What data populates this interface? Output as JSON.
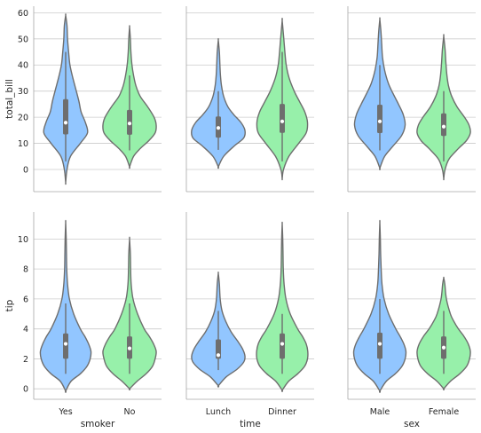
{
  "chart_data": {
    "type": "violin",
    "grid": "horizontal",
    "colors": {
      "first_category": "#92c6ff",
      "second_category": "#97f0aa",
      "outline": "#6e6e6e",
      "median": "#ffffff"
    },
    "row_variables": [
      {
        "ylabel": "total_bill",
        "yticks": [
          0,
          10,
          20,
          30,
          40,
          50,
          60
        ],
        "ylim": [
          -8.5,
          62.5
        ]
      },
      {
        "ylabel": "tip",
        "yticks": [
          0,
          2,
          4,
          6,
          8,
          10
        ],
        "ylim": [
          -0.7,
          11.8
        ]
      }
    ],
    "column_variables": [
      {
        "xlabel": "smoker",
        "categories": [
          "Yes",
          "No"
        ]
      },
      {
        "xlabel": "time",
        "categories": [
          "Lunch",
          "Dinner"
        ]
      },
      {
        "xlabel": "sex",
        "categories": [
          "Male",
          "Female"
        ]
      }
    ],
    "panels": [
      {
        "row": 0,
        "col": 0,
        "violins": [
          {
            "category": "Yes",
            "min": -5.0,
            "max": 59.0,
            "q1": 13.4,
            "median": 17.9,
            "q3": 26.9,
            "whisker_low": 3.1,
            "whisker_high": 45.0,
            "profile": [
              [
                -5,
                0
              ],
              [
                0,
                0.05
              ],
              [
                5,
                0.18
              ],
              [
                10,
                0.55
              ],
              [
                14,
                0.82
              ],
              [
                18,
                0.74
              ],
              [
                22,
                0.58
              ],
              [
                26,
                0.5
              ],
              [
                30,
                0.4
              ],
              [
                35,
                0.27
              ],
              [
                40,
                0.16
              ],
              [
                45,
                0.11
              ],
              [
                50,
                0.07
              ],
              [
                55,
                0.05
              ],
              [
                59,
                0
              ]
            ]
          },
          {
            "category": "No",
            "min": 1.0,
            "max": 54.5,
            "q1": 13.3,
            "median": 17.6,
            "q3": 22.8,
            "whisker_low": 7.3,
            "whisker_high": 36.0,
            "profile": [
              [
                1,
                0
              ],
              [
                5,
                0.15
              ],
              [
                8,
                0.4
              ],
              [
                11,
                0.72
              ],
              [
                14,
                0.96
              ],
              [
                17,
                1.0
              ],
              [
                20,
                0.92
              ],
              [
                24,
                0.68
              ],
              [
                28,
                0.4
              ],
              [
                32,
                0.24
              ],
              [
                36,
                0.15
              ],
              [
                40,
                0.09
              ],
              [
                45,
                0.05
              ],
              [
                50,
                0.03
              ],
              [
                54.5,
                0
              ]
            ]
          }
        ]
      },
      {
        "row": 0,
        "col": 1,
        "violins": [
          {
            "category": "Lunch",
            "min": 1.0,
            "max": 49.5,
            "q1": 12.2,
            "median": 15.9,
            "q3": 20.3,
            "whisker_low": 7.5,
            "whisker_high": 30.0,
            "profile": [
              [
                1,
                0
              ],
              [
                5,
                0.2
              ],
              [
                9,
                0.6
              ],
              [
                12,
                0.95
              ],
              [
                15,
                1.0
              ],
              [
                18,
                0.85
              ],
              [
                21,
                0.58
              ],
              [
                24,
                0.36
              ],
              [
                28,
                0.2
              ],
              [
                32,
                0.12
              ],
              [
                36,
                0.08
              ],
              [
                40,
                0.06
              ],
              [
                45,
                0.04
              ],
              [
                49.5,
                0
              ]
            ]
          },
          {
            "category": "Dinner",
            "min": -3.5,
            "max": 57.0,
            "q1": 14.0,
            "median": 18.4,
            "q3": 25.1,
            "whisker_low": 3.1,
            "whisker_high": 45.0,
            "profile": [
              [
                -3.5,
                0
              ],
              [
                0,
                0.05
              ],
              [
                5,
                0.25
              ],
              [
                10,
                0.62
              ],
              [
                14,
                0.9
              ],
              [
                18,
                0.95
              ],
              [
                22,
                0.85
              ],
              [
                26,
                0.65
              ],
              [
                30,
                0.45
              ],
              [
                35,
                0.26
              ],
              [
                40,
                0.15
              ],
              [
                45,
                0.1
              ],
              [
                50,
                0.06
              ],
              [
                57,
                0
              ]
            ]
          }
        ]
      },
      {
        "row": 0,
        "col": 2,
        "violins": [
          {
            "category": "Male",
            "min": 0.5,
            "max": 57.5,
            "q1": 13.9,
            "median": 18.4,
            "q3": 24.8,
            "whisker_low": 7.3,
            "whisker_high": 40.0,
            "profile": [
              [
                0.5,
                0
              ],
              [
                5,
                0.18
              ],
              [
                9,
                0.5
              ],
              [
                13,
                0.82
              ],
              [
                17,
                0.95
              ],
              [
                21,
                0.88
              ],
              [
                25,
                0.7
              ],
              [
                29,
                0.5
              ],
              [
                33,
                0.32
              ],
              [
                38,
                0.18
              ],
              [
                43,
                0.1
              ],
              [
                48,
                0.07
              ],
              [
                53,
                0.04
              ],
              [
                57.5,
                0
              ]
            ]
          },
          {
            "category": "Female",
            "min": -3.5,
            "max": 51.0,
            "q1": 12.8,
            "median": 16.4,
            "q3": 21.5,
            "whisker_low": 3.1,
            "whisker_high": 30.0,
            "profile": [
              [
                -3.5,
                0
              ],
              [
                0,
                0.05
              ],
              [
                4,
                0.2
              ],
              [
                8,
                0.55
              ],
              [
                11,
                0.85
              ],
              [
                14,
                1.0
              ],
              [
                17,
                0.95
              ],
              [
                20,
                0.78
              ],
              [
                24,
                0.5
              ],
              [
                28,
                0.3
              ],
              [
                32,
                0.18
              ],
              [
                36,
                0.12
              ],
              [
                41,
                0.08
              ],
              [
                46,
                0.05
              ],
              [
                51,
                0
              ]
            ]
          }
        ]
      },
      {
        "row": 1,
        "col": 0,
        "violins": [
          {
            "category": "Yes",
            "min": -0.15,
            "max": 11.1,
            "q1": 2.0,
            "median": 3.0,
            "q3": 3.7,
            "whisker_low": 1.0,
            "whisker_high": 5.7,
            "profile": [
              [
                -0.15,
                0
              ],
              [
                0.5,
                0.2
              ],
              [
                1,
                0.55
              ],
              [
                1.5,
                0.8
              ],
              [
                2,
                0.92
              ],
              [
                2.5,
                0.95
              ],
              [
                3,
                0.86
              ],
              [
                3.5,
                0.72
              ],
              [
                4,
                0.55
              ],
              [
                5,
                0.3
              ],
              [
                6,
                0.14
              ],
              [
                7,
                0.07
              ],
              [
                8,
                0.04
              ],
              [
                9,
                0.03
              ],
              [
                10,
                0.02
              ],
              [
                11.1,
                0
              ]
            ]
          },
          {
            "category": "No",
            "min": 0.0,
            "max": 10.0,
            "q1": 2.0,
            "median": 2.7,
            "q3": 3.5,
            "whisker_low": 1.0,
            "whisker_high": 5.7,
            "profile": [
              [
                0,
                0
              ],
              [
                0.5,
                0.28
              ],
              [
                1,
                0.62
              ],
              [
                1.5,
                0.86
              ],
              [
                2,
                0.96
              ],
              [
                2.5,
                1.0
              ],
              [
                3,
                0.9
              ],
              [
                3.5,
                0.74
              ],
              [
                4,
                0.55
              ],
              [
                5,
                0.3
              ],
              [
                6,
                0.13
              ],
              [
                7,
                0.06
              ],
              [
                8,
                0.04
              ],
              [
                9,
                0.03
              ],
              [
                10,
                0
              ]
            ]
          }
        ]
      },
      {
        "row": 1,
        "col": 1,
        "violins": [
          {
            "category": "Lunch",
            "min": 0.2,
            "max": 7.7,
            "q1": 2.0,
            "median": 2.25,
            "q3": 3.3,
            "whisker_low": 1.25,
            "whisker_high": 5.2,
            "profile": [
              [
                0.2,
                0
              ],
              [
                0.8,
                0.3
              ],
              [
                1.3,
                0.7
              ],
              [
                1.8,
                0.96
              ],
              [
                2.2,
                1.0
              ],
              [
                2.7,
                0.9
              ],
              [
                3.2,
                0.72
              ],
              [
                3.8,
                0.48
              ],
              [
                4.5,
                0.28
              ],
              [
                5.2,
                0.14
              ],
              [
                6,
                0.07
              ],
              [
                7,
                0.04
              ],
              [
                7.7,
                0
              ]
            ]
          },
          {
            "category": "Dinner",
            "min": -0.1,
            "max": 11.0,
            "q1": 2.0,
            "median": 3.0,
            "q3": 3.7,
            "whisker_low": 1.0,
            "whisker_high": 5.0,
            "profile": [
              [
                -0.1,
                0
              ],
              [
                0.5,
                0.24
              ],
              [
                1,
                0.58
              ],
              [
                1.5,
                0.84
              ],
              [
                2,
                0.95
              ],
              [
                2.5,
                0.96
              ],
              [
                3,
                0.9
              ],
              [
                3.5,
                0.76
              ],
              [
                4,
                0.58
              ],
              [
                5,
                0.3
              ],
              [
                6,
                0.14
              ],
              [
                7,
                0.07
              ],
              [
                8,
                0.04
              ],
              [
                9,
                0.03
              ],
              [
                10,
                0.02
              ],
              [
                11,
                0
              ]
            ]
          }
        ]
      },
      {
        "row": 1,
        "col": 2,
        "violins": [
          {
            "category": "Male",
            "min": -0.15,
            "max": 11.1,
            "q1": 2.0,
            "median": 3.0,
            "q3": 3.75,
            "whisker_low": 1.0,
            "whisker_high": 6.0,
            "profile": [
              [
                -0.15,
                0
              ],
              [
                0.5,
                0.24
              ],
              [
                1,
                0.58
              ],
              [
                1.5,
                0.83
              ],
              [
                2,
                0.95
              ],
              [
                2.5,
                0.98
              ],
              [
                3,
                0.9
              ],
              [
                3.5,
                0.76
              ],
              [
                4,
                0.6
              ],
              [
                5,
                0.33
              ],
              [
                6,
                0.16
              ],
              [
                7,
                0.08
              ],
              [
                8,
                0.05
              ],
              [
                9,
                0.03
              ],
              [
                10,
                0.02
              ],
              [
                11.1,
                0
              ]
            ]
          },
          {
            "category": "Female",
            "min": 0.0,
            "max": 7.4,
            "q1": 2.0,
            "median": 2.75,
            "q3": 3.5,
            "whisker_low": 1.0,
            "whisker_high": 5.2,
            "profile": [
              [
                0,
                0
              ],
              [
                0.5,
                0.25
              ],
              [
                1,
                0.6
              ],
              [
                1.5,
                0.86
              ],
              [
                2,
                0.97
              ],
              [
                2.5,
                1.0
              ],
              [
                3,
                0.92
              ],
              [
                3.5,
                0.76
              ],
              [
                4,
                0.55
              ],
              [
                4.5,
                0.38
              ],
              [
                5,
                0.25
              ],
              [
                6,
                0.1
              ],
              [
                7,
                0.04
              ],
              [
                7.4,
                0
              ]
            ]
          }
        ]
      }
    ]
  }
}
